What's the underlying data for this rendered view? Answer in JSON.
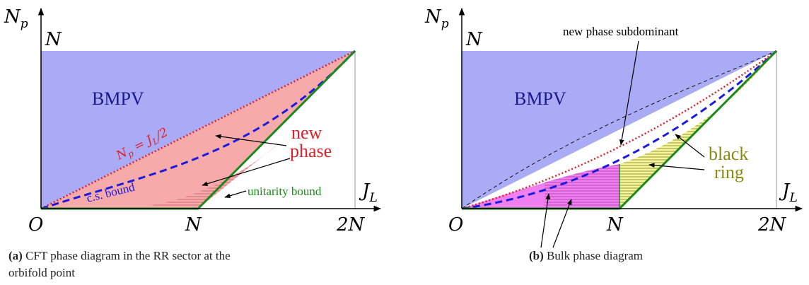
{
  "left": {
    "y_axis_label": "N_p",
    "x_axis_label": "J_L",
    "origin_label": "O",
    "y_tick": "N",
    "x_tick_1": "N",
    "x_tick_2": "2N",
    "region_bmpv": "BMPV",
    "red_line_label": "N_p = J_L/2",
    "cs_bound_label": "c.s. bound",
    "new_phase_line1": "new",
    "new_phase_line2": "phase",
    "unitarity_label": "unitarity bound",
    "caption_tag": "(a)",
    "caption_line1": "CFT phase diagram in the RR sector at the",
    "caption_line2": "orbifold point"
  },
  "right": {
    "y_axis_label": "N_p",
    "x_axis_label": "J_L",
    "origin_label": "O",
    "y_tick": "N",
    "x_tick_1": "N",
    "x_tick_2": "2N",
    "region_bmpv": "BMPV",
    "subdominant_label": "new phase subdominant",
    "black_ring_line1": "black",
    "black_ring_line2": "ring",
    "caption_tag": "(b)",
    "caption_text": "Bulk phase diagram"
  },
  "colors": {
    "bmpv_blue": "#aaaaf5",
    "new_phase_pink": "#f7aaaa",
    "magenta": "#f07ff0",
    "yellow": "#f5f59a",
    "red_dotted": "#e0202a",
    "blue_dashed": "#1a1ae0",
    "green": "#1a8a1a",
    "navy_text": "#1a1a90",
    "olive_text": "#8a8a10"
  }
}
